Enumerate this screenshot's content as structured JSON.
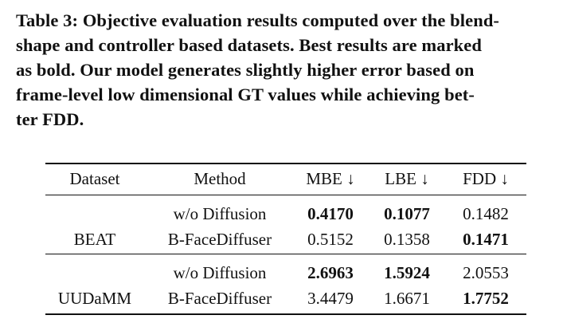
{
  "caption": {
    "lines": [
      "Table 3: Objective evaluation results computed over the blend-",
      "shape and controller based datasets. Best results are marked",
      "as bold. Our model generates slightly higher error based on",
      "frame-level low dimensional GT values while achieving bet-",
      "ter FDD."
    ]
  },
  "table": {
    "headers": {
      "dataset": "Dataset",
      "method": "Method",
      "mbe": "MBE ↓",
      "lbe": "LBE ↓",
      "fdd": "FDD ↓"
    },
    "groups": [
      {
        "dataset": "BEAT",
        "rows": [
          {
            "method": "w/o Diffusion",
            "mbe": "0.4170",
            "lbe": "0.1077",
            "fdd": "0.1482",
            "bold": {
              "mbe": true,
              "lbe": true,
              "fdd": false
            }
          },
          {
            "method": "B-FaceDiffuser",
            "mbe": "0.5152",
            "lbe": "0.1358",
            "fdd": "0.1471",
            "bold": {
              "mbe": false,
              "lbe": false,
              "fdd": true
            }
          }
        ]
      },
      {
        "dataset": "UUDaMM",
        "rows": [
          {
            "method": "w/o Diffusion",
            "mbe": "2.6963",
            "lbe": "1.5924",
            "fdd": "2.0553",
            "bold": {
              "mbe": true,
              "lbe": true,
              "fdd": false
            }
          },
          {
            "method": "B-FaceDiffuser",
            "mbe": "3.4479",
            "lbe": "1.6671",
            "fdd": "1.7752",
            "bold": {
              "mbe": false,
              "lbe": false,
              "fdd": true
            }
          }
        ]
      }
    ]
  }
}
